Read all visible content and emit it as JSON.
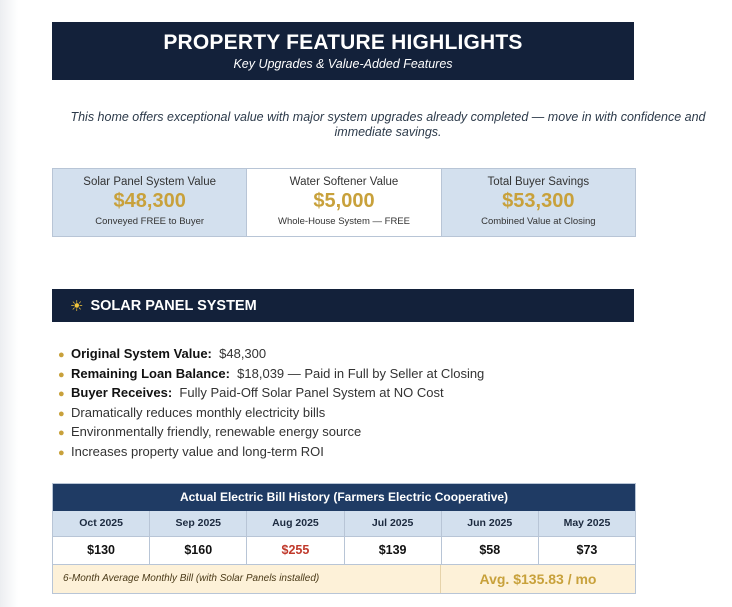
{
  "header": {
    "title": "PROPERTY FEATURE HIGHLIGHTS",
    "subtitle": "Key Upgrades & Value-Added Features"
  },
  "intro": "This home offers exceptional value with major system upgrades already completed — move in with confidence and immediate savings.",
  "stats": [
    {
      "label": "Solar Panel System Value",
      "value": "$48,300",
      "note": "Conveyed FREE to Buyer"
    },
    {
      "label": "Water Softener Value",
      "value": "$5,000",
      "note": "Whole-House System — FREE"
    },
    {
      "label": "Total Buyer Savings",
      "value": "$53,300",
      "note": "Combined Value at Closing"
    }
  ],
  "section": {
    "icon": "sun-icon",
    "title": "SOLAR PANEL SYSTEM"
  },
  "bullets": [
    {
      "label": "Original System Value:",
      "text": "$48,300"
    },
    {
      "label": "Remaining Loan Balance:",
      "text": "$18,039  —  Paid in Full by Seller at Closing"
    },
    {
      "label": "Buyer Receives:",
      "text": "Fully Paid-Off Solar Panel System at NO Cost"
    },
    {
      "label": "",
      "text": "Dramatically reduces monthly electricity bills"
    },
    {
      "label": "",
      "text": "Environmentally friendly, renewable energy source"
    },
    {
      "label": "",
      "text": "Increases property value and long-term ROI"
    }
  ],
  "bill_table": {
    "title": "Actual Electric Bill History (Farmers Electric Cooperative)",
    "months": [
      "Oct 2025",
      "Sep 2025",
      "Aug 2025",
      "Jul 2025",
      "Jun 2025",
      "May 2025"
    ],
    "amounts": [
      "$130",
      "$160",
      "$255",
      "$139",
      "$58",
      "$73"
    ],
    "avg_label": "6-Month Average Monthly Bill  (with Solar Panels installed)",
    "avg_value": "Avg.  $135.83 / mo"
  },
  "colors": {
    "navy": "#13213a",
    "gold": "#c8a13b",
    "light_blue": "#d3e0ee",
    "highlight_red": "#c0392b",
    "cream": "#fdf1d8"
  }
}
